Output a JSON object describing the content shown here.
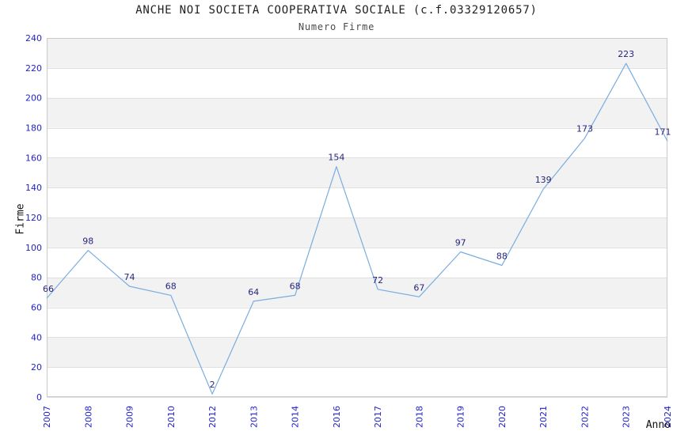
{
  "chart_data": {
    "type": "line",
    "title": "ANCHE NOI SOCIETA COOPERATIVA SOCIALE (c.f.03329120657)",
    "subtitle": "Numero Firme",
    "xlabel": "Anno",
    "ylabel": "Firme",
    "categories": [
      "2007",
      "2008",
      "2009",
      "2010",
      "2012",
      "2013",
      "2014",
      "2016",
      "2017",
      "2018",
      "2019",
      "2020",
      "2021",
      "2022",
      "2023",
      "2024"
    ],
    "series": [
      {
        "name": "Numero Firme",
        "values": [
          66,
          98,
          74,
          68,
          2,
          64,
          68,
          154,
          72,
          67,
          97,
          88,
          139,
          173,
          223,
          171
        ]
      }
    ],
    "ylim": [
      0,
      240
    ],
    "yticks": [
      0,
      20,
      40,
      60,
      80,
      100,
      120,
      140,
      160,
      180,
      200,
      220,
      240
    ],
    "grid": "horizontal-bands-alternating",
    "legend": "none",
    "point_labels": "shown-above-points",
    "colors": {
      "line": "#79ade0",
      "point_label": "#26267d",
      "tick_label": "#2323cc",
      "band": "#f2f2f2",
      "gridline": "#e0e0e0",
      "plot_border": "#c9c9c9",
      "title": "#1f1f1f",
      "subtitle": "#4a4a4a",
      "axis_label": "#111111",
      "background": "#ffffff"
    }
  }
}
